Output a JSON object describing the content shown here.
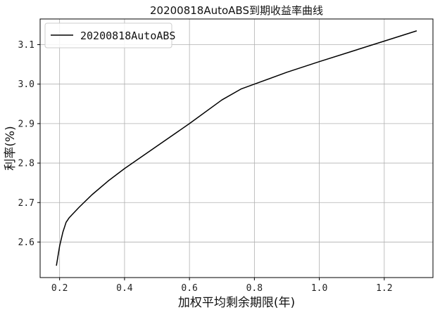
{
  "chart_data": {
    "type": "line",
    "title": "20200818AutoABS到期收益率曲线",
    "xlabel": "加权平均剩余期限(年)",
    "ylabel": "利率(%)",
    "xlim": [
      0.14,
      1.35
    ],
    "ylim": [
      2.51,
      3.165
    ],
    "xticks": [
      0.2,
      0.4,
      0.6,
      0.8,
      1.0,
      1.2
    ],
    "xtick_labels": [
      "0.2",
      "0.4",
      "0.6",
      "0.8",
      "1.0",
      "1.2"
    ],
    "yticks": [
      2.6,
      2.7,
      2.8,
      2.9,
      3.0,
      3.1
    ],
    "ytick_labels": [
      "2.6",
      "2.7",
      "2.8",
      "2.9",
      "3.0",
      "3.1"
    ],
    "grid": true,
    "legend_position": "upper-left",
    "series": [
      {
        "name": "20200818AutoABS",
        "color": "#000000",
        "x": [
          0.19,
          0.2,
          0.21,
          0.22,
          0.23,
          0.26,
          0.3,
          0.35,
          0.4,
          0.5,
          0.6,
          0.7,
          0.76,
          0.8,
          0.9,
          1.0,
          1.1,
          1.2,
          1.3
        ],
        "y": [
          2.54,
          2.59,
          2.625,
          2.65,
          2.662,
          2.688,
          2.72,
          2.755,
          2.786,
          2.843,
          2.9,
          2.96,
          2.988,
          3.0,
          3.03,
          3.057,
          3.083,
          3.109,
          3.135
        ]
      }
    ]
  }
}
